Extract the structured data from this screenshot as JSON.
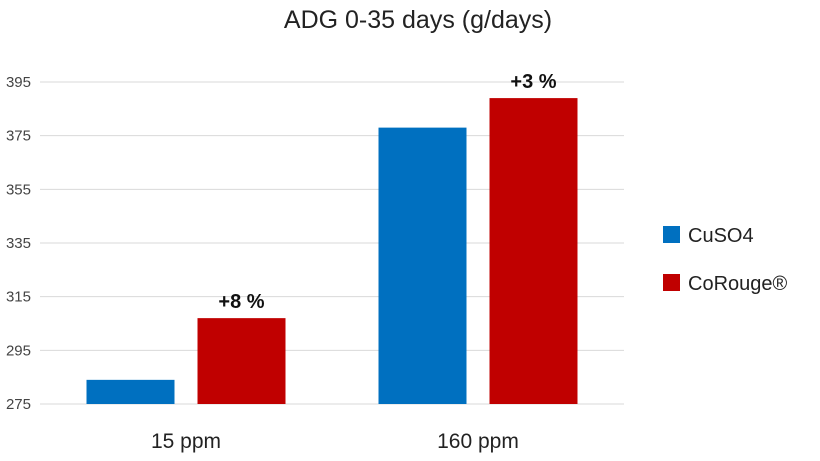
{
  "chart_data": {
    "type": "bar",
    "title": "ADG 0-35 days (g/days)",
    "xlabel": "",
    "ylabel": "",
    "categories": [
      "15 ppm",
      "160 ppm"
    ],
    "series": [
      {
        "name": "CuSO4",
        "color": "#0070c0",
        "values": [
          284,
          378
        ]
      },
      {
        "name": "CoRouge®",
        "color": "#c00000",
        "values": [
          307,
          389
        ]
      }
    ],
    "data_labels": [
      {
        "category": "15 ppm",
        "series": "CoRouge®",
        "text": "+8 %"
      },
      {
        "category": "160 ppm",
        "series": "CoRouge®",
        "text": "+3 %"
      }
    ],
    "ylim": [
      275,
      395
    ],
    "yticks": [
      275,
      295,
      315,
      335,
      355,
      375,
      395
    ],
    "grid": true,
    "legend": "right"
  }
}
